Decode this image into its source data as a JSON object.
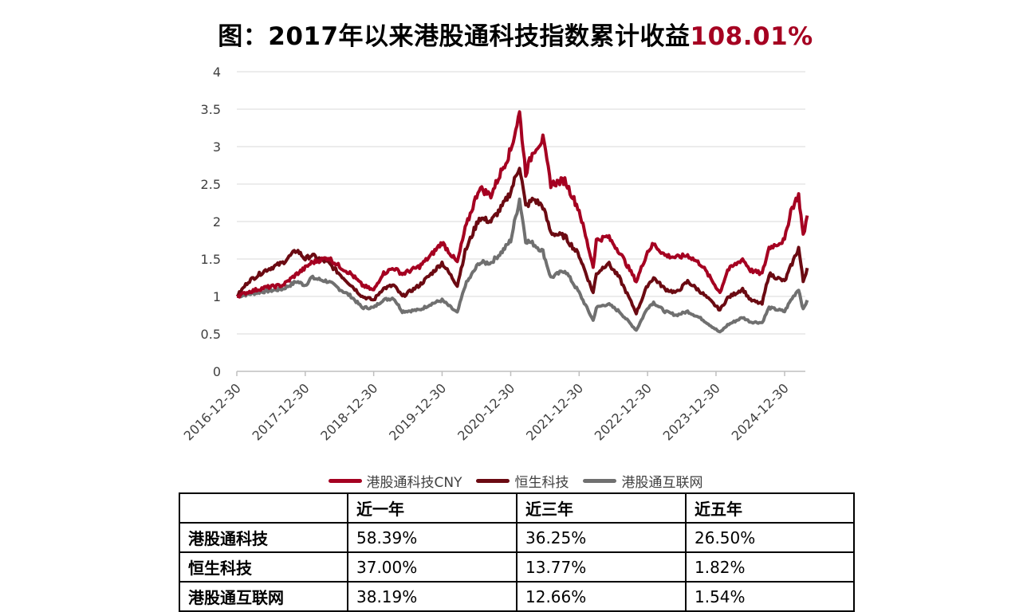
{
  "title": {
    "main": "图：2017年以来港股通科技指数累计收益",
    "highlight": "108.01%"
  },
  "chart_data": {
    "type": "line",
    "title": "图：2017年以来港股通科技指数累计收益108.01%",
    "xlabel": "",
    "ylabel": "",
    "ylim": [
      0,
      4
    ],
    "yticks": [
      "0",
      "0.5",
      "1",
      "1.5",
      "2",
      "2.5",
      "3",
      "3.5",
      "4"
    ],
    "xticks": [
      "2016-12-30",
      "2017-12-30",
      "2018-12-30",
      "2019-12-30",
      "2020-12-30",
      "2021-12-30",
      "2022-12-30",
      "2023-12-30",
      "2024-12-30"
    ],
    "grid": true,
    "legend_position": "bottom",
    "series": [
      {
        "name": "港股通科技CNY",
        "color": "#A50021",
        "points": [
          [
            "2016-12-30",
            1.0
          ],
          [
            "2017-03-01",
            1.06
          ],
          [
            "2017-06-01",
            1.12
          ],
          [
            "2017-09-01",
            1.15
          ],
          [
            "2017-11-15",
            1.3
          ],
          [
            "2017-12-30",
            1.38
          ],
          [
            "2018-02-01",
            1.45
          ],
          [
            "2018-05-01",
            1.52
          ],
          [
            "2018-07-01",
            1.4
          ],
          [
            "2018-09-01",
            1.3
          ],
          [
            "2018-10-30",
            1.15
          ],
          [
            "2018-12-30",
            1.08
          ],
          [
            "2019-02-15",
            1.3
          ],
          [
            "2019-04-15",
            1.38
          ],
          [
            "2019-06-01",
            1.3
          ],
          [
            "2019-09-01",
            1.4
          ],
          [
            "2019-11-01",
            1.55
          ],
          [
            "2019-12-30",
            1.72
          ],
          [
            "2020-03-20",
            1.45
          ],
          [
            "2020-05-01",
            1.9
          ],
          [
            "2020-07-15",
            2.45
          ],
          [
            "2020-09-15",
            2.35
          ],
          [
            "2020-11-15",
            2.7
          ],
          [
            "2020-12-30",
            2.95
          ],
          [
            "2021-02-15",
            3.45
          ],
          [
            "2021-03-20",
            2.65
          ],
          [
            "2021-05-01",
            2.95
          ],
          [
            "2021-06-20",
            3.1
          ],
          [
            "2021-08-01",
            2.5
          ],
          [
            "2021-10-15",
            2.55
          ],
          [
            "2021-12-30",
            2.15
          ],
          [
            "2022-03-15",
            1.4
          ],
          [
            "2022-04-01",
            1.75
          ],
          [
            "2022-06-01",
            1.8
          ],
          [
            "2022-08-01",
            1.6
          ],
          [
            "2022-10-31",
            1.2
          ],
          [
            "2022-12-30",
            1.6
          ],
          [
            "2023-01-31",
            1.7
          ],
          [
            "2023-04-01",
            1.55
          ],
          [
            "2023-06-01",
            1.52
          ],
          [
            "2023-08-01",
            1.55
          ],
          [
            "2023-10-15",
            1.42
          ],
          [
            "2024-01-20",
            1.05
          ],
          [
            "2024-03-01",
            1.35
          ],
          [
            "2024-05-20",
            1.5
          ],
          [
            "2024-07-01",
            1.35
          ],
          [
            "2024-09-01",
            1.3
          ],
          [
            "2024-10-08",
            1.65
          ],
          [
            "2024-12-30",
            1.75
          ],
          [
            "2025-02-01",
            2.15
          ],
          [
            "2025-03-15",
            2.35
          ],
          [
            "2025-04-08",
            1.8
          ],
          [
            "2025-04-30",
            2.08
          ]
        ]
      },
      {
        "name": "恒生科技",
        "color": "#6B0A12",
        "points": [
          [
            "2016-12-30",
            1.0
          ],
          [
            "2017-03-01",
            1.2
          ],
          [
            "2017-06-01",
            1.35
          ],
          [
            "2017-09-01",
            1.45
          ],
          [
            "2017-11-15",
            1.62
          ],
          [
            "2017-12-30",
            1.5
          ],
          [
            "2018-02-01",
            1.55
          ],
          [
            "2018-05-01",
            1.45
          ],
          [
            "2018-07-01",
            1.3
          ],
          [
            "2018-09-01",
            1.15
          ],
          [
            "2018-10-30",
            1.0
          ],
          [
            "2018-12-30",
            0.95
          ],
          [
            "2019-02-15",
            1.1
          ],
          [
            "2019-04-15",
            1.15
          ],
          [
            "2019-06-01",
            1.0
          ],
          [
            "2019-09-01",
            1.15
          ],
          [
            "2019-11-01",
            1.3
          ],
          [
            "2019-12-30",
            1.45
          ],
          [
            "2020-03-20",
            1.15
          ],
          [
            "2020-05-01",
            1.6
          ],
          [
            "2020-07-15",
            2.05
          ],
          [
            "2020-09-15",
            2.0
          ],
          [
            "2020-11-15",
            2.2
          ],
          [
            "2020-12-30",
            2.4
          ],
          [
            "2021-02-15",
            2.75
          ],
          [
            "2021-03-20",
            2.2
          ],
          [
            "2021-05-01",
            2.3
          ],
          [
            "2021-06-20",
            2.2
          ],
          [
            "2021-08-01",
            1.85
          ],
          [
            "2021-10-15",
            1.8
          ],
          [
            "2021-12-30",
            1.55
          ],
          [
            "2022-03-15",
            1.05
          ],
          [
            "2022-04-01",
            1.3
          ],
          [
            "2022-06-01",
            1.45
          ],
          [
            "2022-08-01",
            1.25
          ],
          [
            "2022-10-31",
            0.78
          ],
          [
            "2022-12-30",
            1.15
          ],
          [
            "2023-01-31",
            1.25
          ],
          [
            "2023-04-01",
            1.1
          ],
          [
            "2023-06-01",
            1.05
          ],
          [
            "2023-08-01",
            1.2
          ],
          [
            "2023-10-15",
            1.05
          ],
          [
            "2024-01-20",
            0.82
          ],
          [
            "2024-03-01",
            0.98
          ],
          [
            "2024-05-20",
            1.1
          ],
          [
            "2024-07-01",
            0.95
          ],
          [
            "2024-09-01",
            0.9
          ],
          [
            "2024-10-08",
            1.3
          ],
          [
            "2024-12-30",
            1.2
          ],
          [
            "2025-02-01",
            1.4
          ],
          [
            "2025-03-15",
            1.65
          ],
          [
            "2025-04-08",
            1.2
          ],
          [
            "2025-04-30",
            1.38
          ]
        ]
      },
      {
        "name": "港股通互联网",
        "color": "#707070",
        "points": [
          [
            "2016-12-30",
            1.0
          ],
          [
            "2017-03-01",
            1.03
          ],
          [
            "2017-06-01",
            1.07
          ],
          [
            "2017-09-01",
            1.1
          ],
          [
            "2017-11-15",
            1.2
          ],
          [
            "2017-12-30",
            1.15
          ],
          [
            "2018-02-01",
            1.25
          ],
          [
            "2018-05-01",
            1.2
          ],
          [
            "2018-07-01",
            1.1
          ],
          [
            "2018-09-01",
            1.0
          ],
          [
            "2018-10-30",
            0.85
          ],
          [
            "2018-12-30",
            0.85
          ],
          [
            "2019-02-15",
            0.95
          ],
          [
            "2019-04-15",
            0.98
          ],
          [
            "2019-06-01",
            0.8
          ],
          [
            "2019-09-01",
            0.82
          ],
          [
            "2019-11-01",
            0.9
          ],
          [
            "2019-12-30",
            0.95
          ],
          [
            "2020-03-20",
            0.78
          ],
          [
            "2020-05-01",
            1.15
          ],
          [
            "2020-07-15",
            1.45
          ],
          [
            "2020-09-15",
            1.45
          ],
          [
            "2020-11-15",
            1.6
          ],
          [
            "2020-12-30",
            1.75
          ],
          [
            "2021-02-15",
            2.3
          ],
          [
            "2021-03-20",
            1.75
          ],
          [
            "2021-05-01",
            1.7
          ],
          [
            "2021-06-20",
            1.6
          ],
          [
            "2021-08-01",
            1.25
          ],
          [
            "2021-10-15",
            1.35
          ],
          [
            "2021-12-30",
            1.05
          ],
          [
            "2022-03-15",
            0.68
          ],
          [
            "2022-04-01",
            0.85
          ],
          [
            "2022-06-01",
            0.9
          ],
          [
            "2022-08-01",
            0.8
          ],
          [
            "2022-10-31",
            0.55
          ],
          [
            "2022-12-30",
            0.85
          ],
          [
            "2023-01-31",
            0.92
          ],
          [
            "2023-04-01",
            0.8
          ],
          [
            "2023-06-01",
            0.75
          ],
          [
            "2023-08-01",
            0.8
          ],
          [
            "2023-10-15",
            0.7
          ],
          [
            "2024-01-20",
            0.52
          ],
          [
            "2024-03-01",
            0.62
          ],
          [
            "2024-05-20",
            0.72
          ],
          [
            "2024-07-01",
            0.66
          ],
          [
            "2024-09-01",
            0.65
          ],
          [
            "2024-10-08",
            0.85
          ],
          [
            "2024-12-30",
            0.8
          ],
          [
            "2025-02-01",
            0.95
          ],
          [
            "2025-03-15",
            1.1
          ],
          [
            "2025-04-08",
            0.82
          ],
          [
            "2025-04-30",
            0.95
          ]
        ]
      }
    ]
  },
  "table": {
    "headers": [
      "",
      "近一年",
      "近三年",
      "近五年"
    ],
    "rows": [
      {
        "label": "港股通科技",
        "values": [
          "58.39%",
          "36.25%",
          "26.50%"
        ]
      },
      {
        "label": "恒生科技",
        "values": [
          "37.00%",
          "13.77%",
          "1.82%"
        ]
      },
      {
        "label": "港股通互联网",
        "values": [
          "38.19%",
          "12.66%",
          "1.54%"
        ]
      }
    ]
  }
}
